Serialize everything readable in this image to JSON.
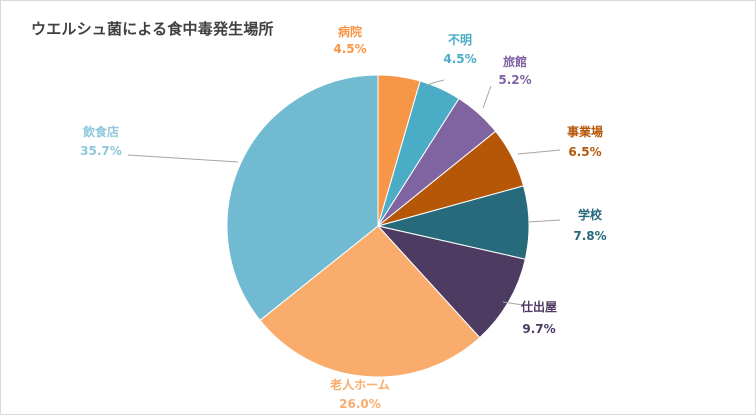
{
  "chart_data": {
    "type": "pie",
    "title": "ウエルシュ菌による食中毒発生場所",
    "unit": "%",
    "start_angle_deg": 0,
    "direction": "clockwise",
    "slices": [
      {
        "label": "病院",
        "value": 4.5,
        "display": "4.5%",
        "color": "#f79646",
        "label_color": "#f79646"
      },
      {
        "label": "不明",
        "value": 4.5,
        "display": "4.5%",
        "color": "#4bacc6",
        "label_color": "#4bacc6"
      },
      {
        "label": "旅館",
        "value": 5.2,
        "display": "5.2%",
        "color": "#8064a2",
        "label_color": "#8064a2"
      },
      {
        "label": "事業場",
        "value": 6.5,
        "display": "6.5%",
        "color": "#b65708",
        "label_color": "#b65708"
      },
      {
        "label": "学校",
        "value": 7.8,
        "display": "7.8%",
        "color": "#276a7c",
        "label_color": "#276a7c"
      },
      {
        "label": "仕出屋",
        "value": 9.7,
        "display": "9.7%",
        "color": "#4d3b62",
        "label_color": "#4d3b62"
      },
      {
        "label": "老人ホーム",
        "value": 26.0,
        "display": "26.0%",
        "color": "#f9ac6c",
        "label_color": "#f9ac6c"
      },
      {
        "label": "飲食店",
        "value": 35.7,
        "display": "35.7%",
        "color": "#71bbd2",
        "label_color": "#8ec8da"
      }
    ]
  }
}
